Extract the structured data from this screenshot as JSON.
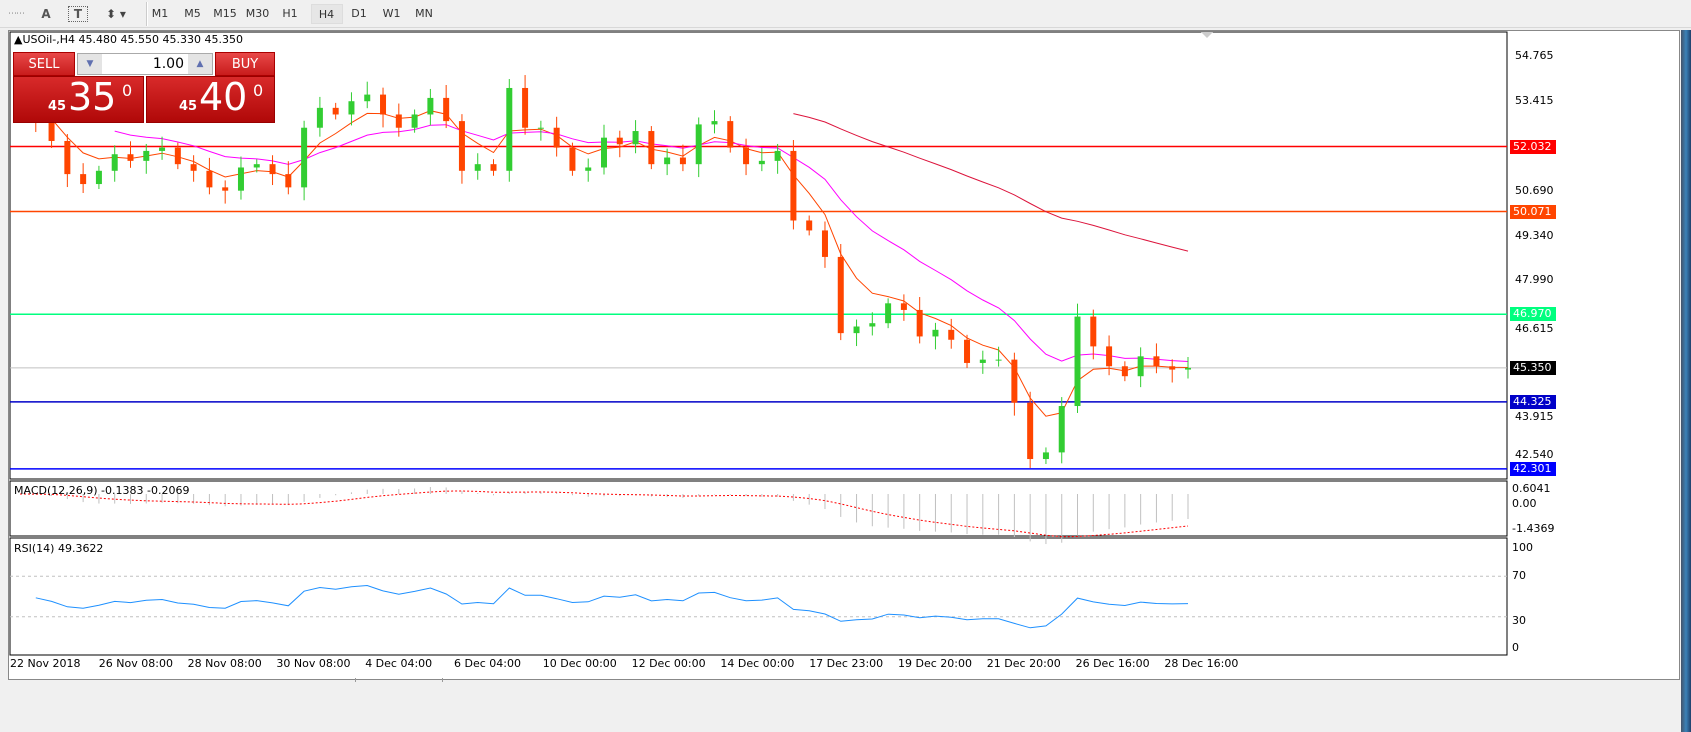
{
  "toolbar": {
    "icons": [
      "period-separator-icon",
      "text-icon",
      "text-label-icon",
      "arrows-icon"
    ],
    "text_icon_label": "A",
    "label_icon_label": "T",
    "timeframes": [
      "M1",
      "M5",
      "M15",
      "M30",
      "H1",
      "H4",
      "D1",
      "W1",
      "MN"
    ],
    "active_timeframe": "H4"
  },
  "chart": {
    "header": "USOil-,H4  45.480 45.550 45.330 45.350",
    "price_scale": [
      "54.765",
      "53.415",
      "50.690",
      "49.340",
      "47.990",
      "46.615",
      "43.915",
      "42.540"
    ],
    "price_scale_values": [
      54.765,
      53.415,
      50.69,
      49.34,
      47.99,
      46.615,
      43.915,
      42.54
    ],
    "levels": [
      {
        "label": "52.032",
        "value": 52.032,
        "color": "#ff0000"
      },
      {
        "label": "50.071",
        "value": 50.071,
        "color": "#ff4500"
      },
      {
        "label": "46.970",
        "value": 46.97,
        "color": "#00ff7f"
      },
      {
        "label": "45.350",
        "value": 45.35,
        "color": "#c0c0c0",
        "tag_color": "#000000"
      },
      {
        "label": "44.325",
        "value": 44.325,
        "color": "#0000c8"
      },
      {
        "label": "42.301",
        "value": 42.301,
        "color": "#0000ff"
      }
    ],
    "time_labels": [
      "22 Nov 2018",
      "26 Nov 08:00",
      "28 Nov 08:00",
      "30 Nov 08:00",
      "4 Dec 04:00",
      "6 Dec 04:00",
      "10 Dec 00:00",
      "12 Dec 00:00",
      "14 Dec 00:00",
      "17 Dec 23:00",
      "19 Dec 20:00",
      "21 Dec 20:00",
      "26 Dec 16:00",
      "28 Dec 16:00"
    ],
    "colors": {
      "bull": "#32cd32",
      "bear": "#ff4500",
      "ma_fast": "#ff4500",
      "ma_mid": "#ff00ff",
      "ma_slow": "#dc143c",
      "rsi": "#1e90ff",
      "macd_hist": "#c0c0c0",
      "macd_signal": "#ff0000"
    }
  },
  "trade_panel": {
    "sell_label": "SELL",
    "buy_label": "BUY",
    "volume": "1.00",
    "sell_price_small": "45",
    "sell_price_large": "35",
    "sell_price_pip": "0",
    "buy_price_small": "45",
    "buy_price_large": "40",
    "buy_price_pip": "0"
  },
  "macd": {
    "label": "MACD(12,26,9) -0.1383 -0.2069",
    "scale": [
      "0.6041",
      "0.00",
      "-1.4369"
    ]
  },
  "rsi": {
    "label": "RSI(14) 49.3622",
    "scale": [
      "100",
      "70",
      "30",
      "0"
    ]
  },
  "chart_data": {
    "type": "candlestick",
    "symbol": "USOil-",
    "timeframe": "H4",
    "ylim": [
      42.0,
      55.5
    ],
    "closes": [
      53.0,
      52.8,
      52.2,
      51.2,
      50.9,
      51.3,
      51.8,
      51.6,
      51.9,
      52.0,
      51.5,
      51.3,
      50.8,
      50.7,
      51.4,
      51.5,
      51.2,
      50.8,
      52.6,
      53.2,
      53.0,
      53.4,
      53.6,
      53.0,
      52.6,
      53.0,
      53.5,
      52.8,
      51.3,
      51.5,
      51.3,
      53.8,
      52.6,
      52.6,
      52.0,
      51.3,
      51.4,
      52.3,
      52.1,
      52.5,
      51.5,
      51.7,
      51.5,
      52.7,
      52.8,
      52.0,
      51.5,
      51.6,
      51.9,
      49.8,
      49.5,
      48.7,
      46.4,
      46.6,
      46.7,
      47.3,
      47.1,
      46.3,
      46.5,
      46.2,
      45.5,
      45.6,
      45.6,
      44.3,
      42.6,
      42.8,
      44.2,
      46.9,
      46.0,
      45.4,
      45.1,
      45.7,
      45.4,
      45.3,
      45.35
    ]
  }
}
